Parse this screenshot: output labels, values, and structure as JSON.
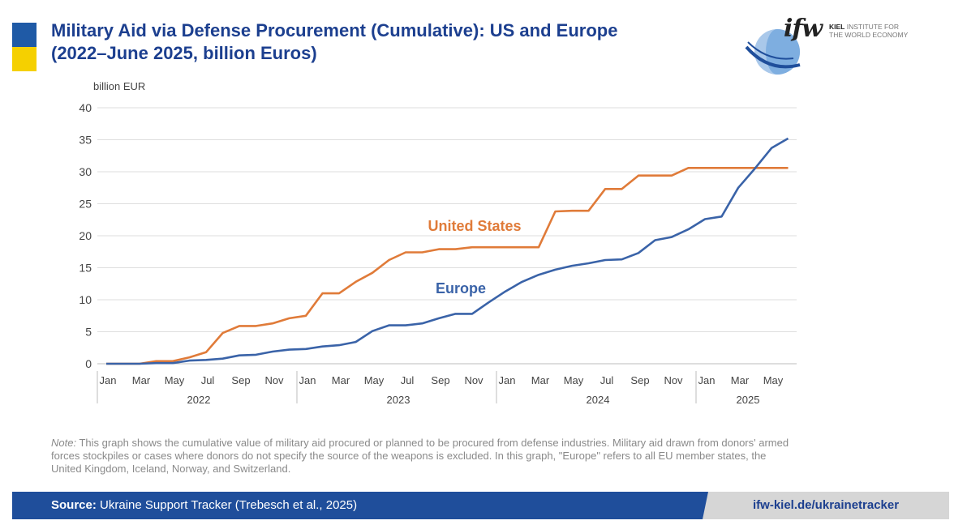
{
  "header": {
    "title_line1": "Military Aid via Defense Procurement (Cumulative): US and Europe",
    "title_line2": "(2022–June 2025, billion Euros)"
  },
  "logo": {
    "mark": "ifw",
    "name_bold": "KIEL",
    "name_rest": "INSTITUTE FOR",
    "name_line2": "THE WORLD ECONOMY"
  },
  "colors": {
    "us": "#e07b39",
    "europe": "#3a63a8",
    "title": "#1c3f8f",
    "footer": "#1f4e9b"
  },
  "chart_data": {
    "type": "line",
    "ylabel": "billion EUR",
    "ylim": [
      0,
      40
    ],
    "yticks": [
      0,
      5,
      10,
      15,
      20,
      25,
      30,
      35,
      40
    ],
    "grid": true,
    "x_tick_labels": [
      "Jan",
      "Mar",
      "May",
      "Jul",
      "Sep",
      "Nov",
      "Jan",
      "Mar",
      "May",
      "Jul",
      "Sep",
      "Nov",
      "Jan",
      "Mar",
      "May",
      "Jul",
      "Sep",
      "Nov",
      "Jan",
      "Mar",
      "May"
    ],
    "x_tick_months": [
      1,
      3,
      5,
      7,
      9,
      11,
      13,
      15,
      17,
      19,
      21,
      23,
      25,
      27,
      29,
      31,
      33,
      35,
      37,
      39,
      41
    ],
    "years": [
      {
        "label": "2022",
        "start": 1,
        "end": 12
      },
      {
        "label": "2023",
        "start": 13,
        "end": 24
      },
      {
        "label": "2024",
        "start": 25,
        "end": 36
      },
      {
        "label": "2025",
        "start": 37,
        "end": 42
      }
    ],
    "x": [
      "2022-01",
      "2022-02",
      "2022-03",
      "2022-04",
      "2022-05",
      "2022-06",
      "2022-07",
      "2022-08",
      "2022-09",
      "2022-10",
      "2022-11",
      "2022-12",
      "2023-01",
      "2023-02",
      "2023-03",
      "2023-04",
      "2023-05",
      "2023-06",
      "2023-07",
      "2023-08",
      "2023-09",
      "2023-10",
      "2023-11",
      "2023-12",
      "2024-01",
      "2024-02",
      "2024-03",
      "2024-04",
      "2024-05",
      "2024-06",
      "2024-07",
      "2024-08",
      "2024-09",
      "2024-10",
      "2024-11",
      "2024-12",
      "2025-01",
      "2025-02",
      "2025-03",
      "2025-04",
      "2025-05",
      "2025-06"
    ],
    "series": [
      {
        "name": "United States",
        "values": [
          0,
          0,
          0,
          0.4,
          0.4,
          1.0,
          1.8,
          4.8,
          5.9,
          5.9,
          6.3,
          7.1,
          7.5,
          11.0,
          11.0,
          12.8,
          14.2,
          16.2,
          17.4,
          17.4,
          17.9,
          17.9,
          18.2,
          18.2,
          18.2,
          18.2,
          18.2,
          23.8,
          23.9,
          23.9,
          27.3,
          27.3,
          29.4,
          29.4,
          29.4,
          30.6,
          30.6,
          30.6,
          30.6,
          30.6,
          30.6,
          30.6
        ]
      },
      {
        "name": "Europe",
        "values": [
          0,
          0,
          0,
          0.1,
          0.1,
          0.5,
          0.6,
          0.8,
          1.3,
          1.4,
          1.9,
          2.2,
          2.3,
          2.7,
          2.9,
          3.4,
          5.1,
          6.0,
          6.0,
          6.3,
          7.1,
          7.8,
          7.8,
          9.6,
          11.3,
          12.8,
          13.9,
          14.7,
          15.3,
          15.7,
          16.2,
          16.3,
          17.3,
          19.3,
          19.8,
          21.0,
          22.6,
          23.0,
          27.5,
          30.5,
          33.7,
          35.2
        ]
      }
    ]
  },
  "note": {
    "label": "Note:",
    "text": " This graph shows the cumulative value of military aid procured or planned to be procured from defense industries. Military aid drawn from donors' armed forces stockpiles or cases where donors do not specify the source of the weapons is excluded. In this graph, \"Europe\" refers to all EU member states, the United Kingdom, Iceland, Norway, and Switzerland."
  },
  "footer": {
    "source_label": "Source:",
    "source_text": " Ukraine Support Tracker (Trebesch et al., 2025)",
    "url": "ifw-kiel.de/ukrainetracker"
  }
}
